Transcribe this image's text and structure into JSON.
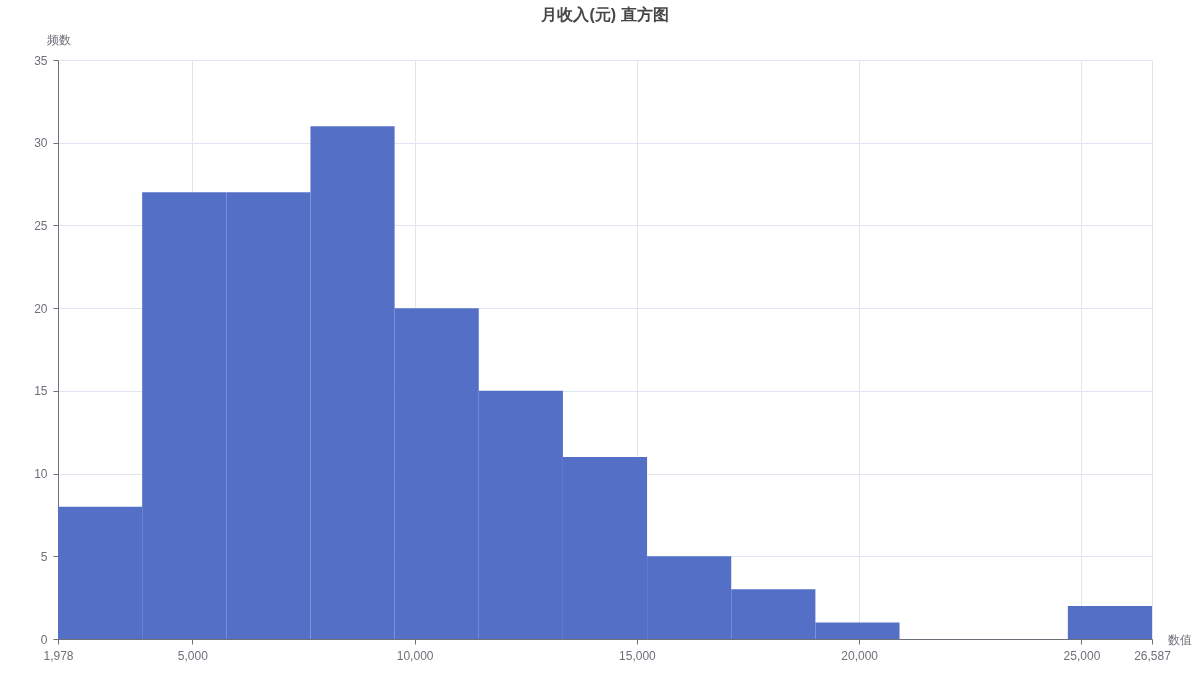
{
  "chart_data": {
    "type": "histogram",
    "title": "月收入(元) 直方图",
    "xlabel": "数值",
    "ylabel": "频数",
    "bins": [
      1978,
      3871,
      5764,
      7657,
      9550,
      11443,
      13336,
      15229,
      17122,
      19015,
      20908,
      22801,
      24694,
      26587
    ],
    "values": [
      8,
      27,
      27,
      31,
      20,
      15,
      11,
      5,
      3,
      1,
      0,
      0,
      2
    ],
    "color": "#5470c6",
    "xlim": [
      1978,
      26587
    ],
    "xticks": [
      {
        "value": 1978,
        "label": "1,978"
      },
      {
        "value": 5000,
        "label": "5,000"
      },
      {
        "value": 10000,
        "label": "10,000"
      },
      {
        "value": 15000,
        "label": "15,000"
      },
      {
        "value": 20000,
        "label": "20,000"
      },
      {
        "value": 25000,
        "label": "25,000"
      },
      {
        "value": 26587,
        "label": "26,587"
      }
    ],
    "ylim": [
      0,
      35
    ],
    "yticks": [
      0,
      5,
      10,
      15,
      20,
      25,
      30,
      35
    ],
    "grid": true
  }
}
